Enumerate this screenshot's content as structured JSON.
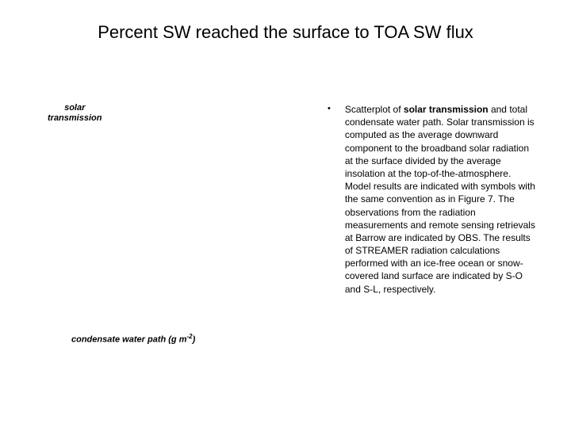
{
  "slide": {
    "title": "Percent SW reached the surface to TOA SW flux",
    "title_fontsize": 22,
    "title_color": "#000000",
    "background_color": "#ffffff"
  },
  "chart": {
    "type": "scatter",
    "y_axis_label_line1": "solar",
    "y_axis_label_line2": "transmission",
    "x_axis_label_prefix": "condensate water path (g m",
    "x_axis_label_exponent": "-2",
    "x_axis_label_suffix": ")",
    "axis_label_fontsize": 11,
    "axis_label_fontweight": "bold",
    "axis_label_fontstyle": "italic",
    "axis_label_color": "#000000"
  },
  "bullet": {
    "marker": "•",
    "text_part1": "Scatterplot of ",
    "text_bold": "solar transmission",
    "text_part2": " and total condensate water path. Solar transmission is computed as the average downward component to the broadband solar radiation at the surface divided by the average insolation at the top-of-the-atmosphere. Model results are indicated with symbols with the same convention as in Figure 7. The observations from the radiation measurements and remote sensing retrievals at Barrow are indicated by OBS. The results of STREAMER radiation calculations performed with an ice-free ocean or snow-covered land surface are indicated by S-O and S-L, respectively.",
    "fontsize": 12,
    "line_height": 1.35,
    "color": "#000000"
  }
}
